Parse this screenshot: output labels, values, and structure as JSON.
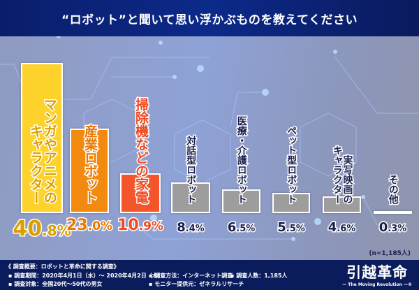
{
  "title": "“ロボット”と聞いて思い浮かぶものを教えてください",
  "chart_data": {
    "type": "bar",
    "title": "“ロボット”と聞いて思い浮かぶものを教えてください",
    "unit": "%",
    "ylim": [
      0,
      45
    ],
    "categories": [
      [
        "マンガやアニメの",
        "キャラクター"
      ],
      [
        "産業ロボット"
      ],
      [
        "掃除機などの家電"
      ],
      [
        "対話型ロボット"
      ],
      [
        "医療・介護ロボット"
      ],
      [
        "ペット型ロボット"
      ],
      [
        "実写映画の",
        "キャラクター"
      ],
      [
        "その他"
      ]
    ],
    "values": [
      40.8,
      23.0,
      10.9,
      8.4,
      6.5,
      5.5,
      4.6,
      0.3
    ],
    "value_labels": [
      "40.8%",
      "23.0%",
      "10.9%",
      "8.4%",
      "6.5%",
      "5.5%",
      "4.6%",
      "0.3%"
    ],
    "bar_colors": [
      "#fdd22a",
      "#f28a10",
      "#f5552a",
      "#9d9d9d",
      "#9d9d9d",
      "#9d9d9d",
      "#9d9d9d",
      "#9d9d9d"
    ],
    "label_colors": [
      "#d9a000",
      "#e87800",
      "#f04a20",
      "#1a1f4a",
      "#1a1f4a",
      "#1a1f4a",
      "#1a1f4a",
      "#1a1f4a"
    ],
    "note": "(n=1,185人)"
  },
  "footer": {
    "heading": "《 調査概要：ロボットと革命に関する調査》",
    "period": "▪ 調査期間：2020年4月1日（水）～ 2020年4月2日（木）",
    "target": "▪ 調査対象：全国20代～50代の男女",
    "method": "▪ 調査方法：インターネット調査",
    "count": "▪ 調査人数：1,185人",
    "provider": "▪ モニター提供元：ゼネラルリサーチ"
  },
  "logo": {
    "main": "引越革命",
    "sub": "— The Moving Revolution —®"
  }
}
